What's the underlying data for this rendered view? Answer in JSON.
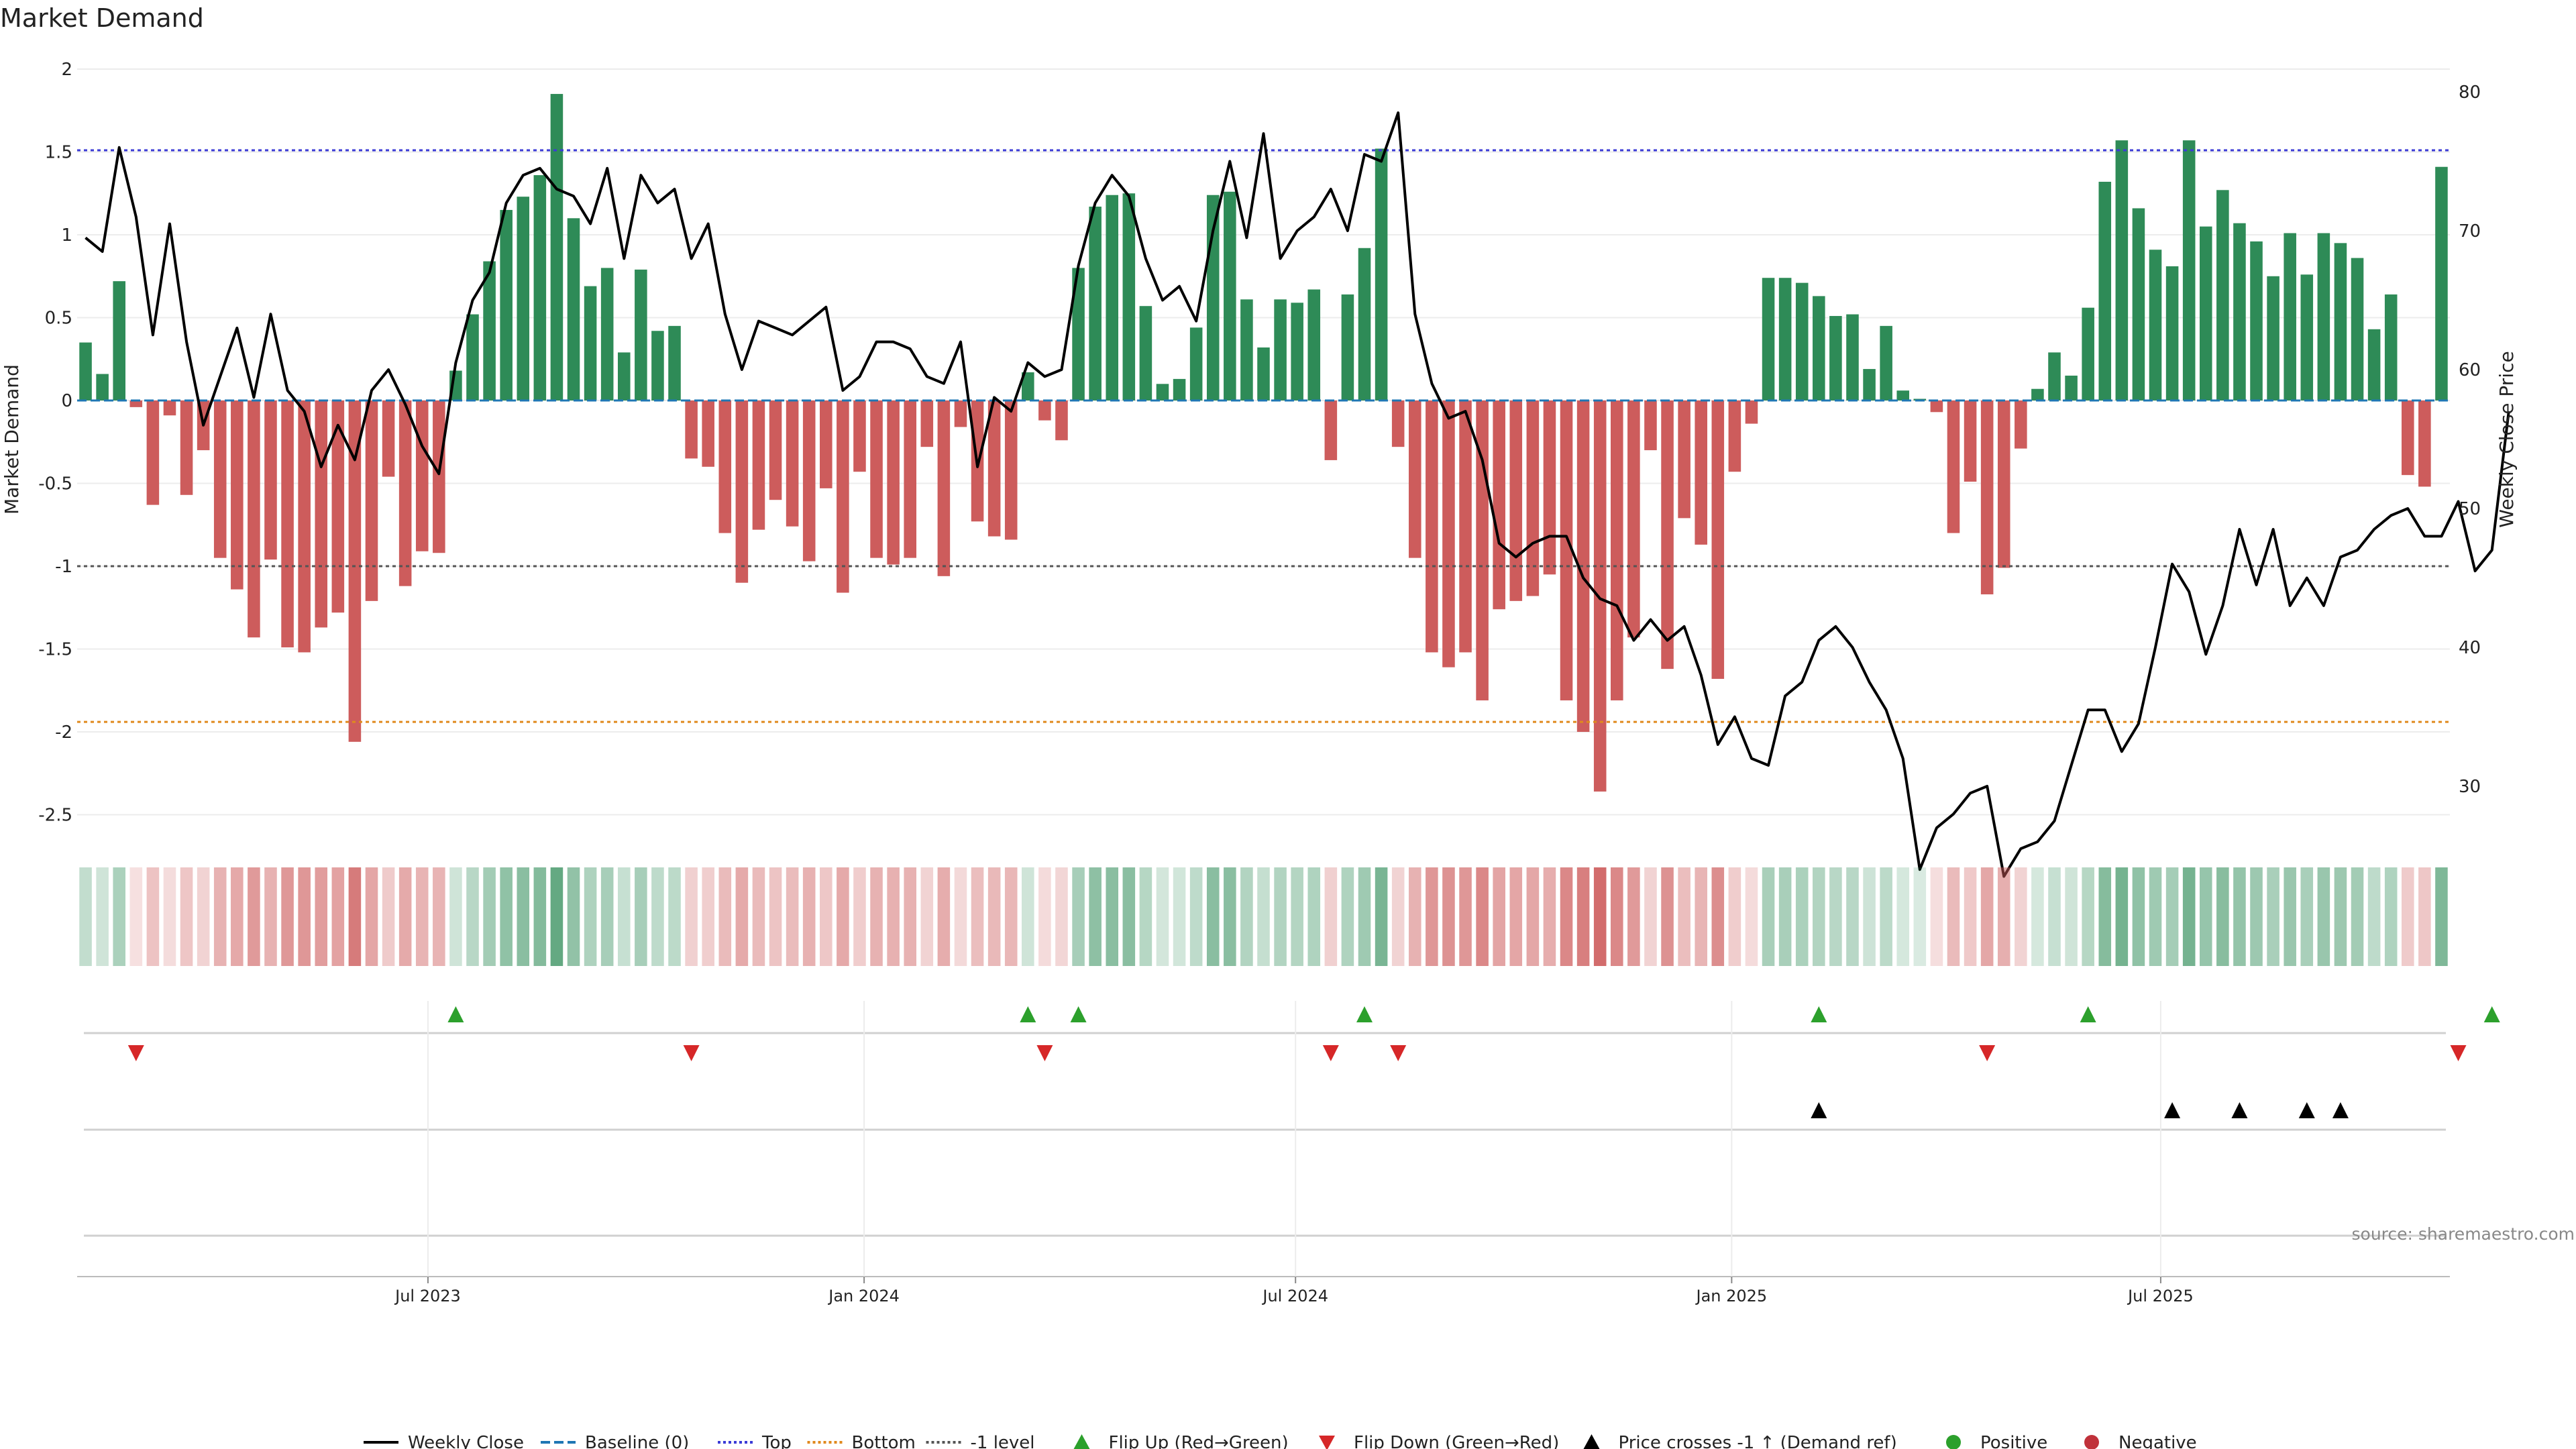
{
  "title": "Market Demand",
  "source": "source: sharemaestro.com",
  "colors": {
    "pos": "#2e8b57",
    "neg": "#cd5c5c",
    "price": "#000000",
    "baseline": "#1f77b4",
    "top": "#3b3bd6",
    "bottom": "#e08a1e",
    "level": "#555555",
    "flip_up": "#2ca02c",
    "flip_down": "#d62728",
    "cross": "#000000",
    "positive_dot": "#2ca02c",
    "negative_dot": "#c0313a"
  },
  "chart_data": {
    "type": "bar",
    "title": "Market Demand",
    "ylabel": "Market Demand",
    "y2label": "Weekly Close Price",
    "ylim": [
      -2.7,
      2.0
    ],
    "y2lim": [
      25.5,
      81.5
    ],
    "yticks": [
      "2",
      "1.5",
      "1",
      "0.5",
      "0",
      "-0.5",
      "-1",
      "-1.5",
      "-2",
      "-2.5"
    ],
    "ytick_values": [
      2,
      1.5,
      1,
      0.5,
      0,
      -0.5,
      -1,
      -1.5,
      -2,
      -2.5
    ],
    "y2ticks": [
      "80",
      "70",
      "60",
      "50",
      "40",
      "30"
    ],
    "y2tick_values": [
      80,
      70,
      60,
      50,
      40,
      30
    ],
    "x_start": "2023-02-03",
    "x_end": "2025-10-31",
    "x_ticks": [
      {
        "label": "Jul 2023",
        "date": "2023-07-01"
      },
      {
        "label": "Jan 2024",
        "date": "2024-01-01"
      },
      {
        "label": "Jul 2024",
        "date": "2024-07-01"
      },
      {
        "label": "Jan 2025",
        "date": "2025-01-01"
      },
      {
        "label": "Jul 2025",
        "date": "2025-07-01"
      }
    ],
    "reference_lines": {
      "top": 1.51,
      "bottom": -1.94,
      "level": -1.0,
      "baseline": 0
    },
    "demand": [
      0.35,
      0.16,
      0.72,
      -0.04,
      -0.63,
      -0.09,
      -0.57,
      -0.3,
      -0.95,
      -1.14,
      -1.43,
      -0.96,
      -1.49,
      -1.52,
      -1.37,
      -1.28,
      -2.06,
      -1.21,
      -0.46,
      -1.12,
      -0.91,
      -0.92,
      0.18,
      0.52,
      0.84,
      1.15,
      1.23,
      1.36,
      1.85,
      1.1,
      0.69,
      0.8,
      0.29,
      0.79,
      0.42,
      0.45,
      -0.35,
      -0.4,
      -0.8,
      -1.1,
      -0.78,
      -0.6,
      -0.76,
      -0.97,
      -0.53,
      -1.16,
      -0.43,
      -0.95,
      -0.99,
      -0.95,
      -0.28,
      -1.06,
      -0.16,
      -0.73,
      -0.82,
      -0.84,
      0.17,
      -0.12,
      -0.24,
      0.8,
      1.17,
      1.24,
      1.25,
      0.57,
      0.1,
      0.13,
      0.44,
      1.24,
      1.26,
      0.61,
      0.32,
      0.61,
      0.59,
      0.67,
      -0.36,
      0.64,
      0.92,
      1.52,
      -0.28,
      -0.95,
      -1.52,
      -1.61,
      -1.52,
      -1.81,
      -1.26,
      -1.21,
      -1.18,
      -1.05,
      -1.81,
      -2.0,
      -2.36,
      -1.81,
      -1.43,
      -0.3,
      -1.62,
      -0.71,
      -0.87,
      -1.68,
      -0.43,
      -0.14,
      0.74,
      0.74,
      0.71,
      0.63,
      0.51,
      0.52,
      0.19,
      0.45,
      0.06,
      0.01,
      -0.07,
      -0.8,
      -0.49,
      -1.17,
      -1.01,
      -0.29,
      0.07,
      0.29,
      0.15,
      0.56,
      1.32,
      1.57,
      1.16,
      0.91,
      0.81,
      1.57,
      1.05,
      1.27,
      1.07,
      0.96,
      0.75,
      1.01,
      0.76,
      1.01,
      0.95,
      0.86,
      0.43,
      0.64,
      -0.45,
      -0.52,
      1.41
    ],
    "weekly_close": [
      69.5,
      68.5,
      76.0,
      71.0,
      62.5,
      70.5,
      62.0,
      56.0,
      59.5,
      63.0,
      58.0,
      64.0,
      58.5,
      57.0,
      53.0,
      56.0,
      53.5,
      58.5,
      60.0,
      57.5,
      54.5,
      52.5,
      60.5,
      65.0,
      67.0,
      72.0,
      74.0,
      74.5,
      73.0,
      72.5,
      70.5,
      74.5,
      68.0,
      74.0,
      72.0,
      73.0,
      68.0,
      70.5,
      64.0,
      60.0,
      63.5,
      63.0,
      62.5,
      63.5,
      64.5,
      58.5,
      59.5,
      62.0,
      62.0,
      61.5,
      59.5,
      59.0,
      62.0,
      53.0,
      58.0,
      57.0,
      60.5,
      59.5,
      60.0,
      67.5,
      72.0,
      74.0,
      72.5,
      68.0,
      65.0,
      66.0,
      63.5,
      70.0,
      75.0,
      69.5,
      77.0,
      68.0,
      70.0,
      71.0,
      73.0,
      70.0,
      75.5,
      75.0,
      78.5,
      64.0,
      59.0,
      56.5,
      57.0,
      53.5,
      47.5,
      46.5,
      47.5,
      48.0,
      48.0,
      45.0,
      43.5,
      43.0,
      40.5,
      42.0,
      40.5,
      41.5,
      38.0,
      33.0,
      35.0,
      32.0,
      31.5,
      36.5,
      37.5,
      40.5,
      41.5,
      40.0,
      37.5,
      35.5,
      32.0,
      24.0,
      27.0,
      28.0,
      29.5,
      30.0,
      23.5,
      25.5,
      26.0,
      27.5,
      31.5,
      35.5,
      35.5,
      32.5,
      34.5,
      40.0,
      46.0,
      44.0,
      39.5,
      43.0,
      48.5,
      44.5,
      48.5,
      43.0,
      45.0,
      43.0,
      46.5,
      47.0,
      48.5,
      49.5,
      50.0,
      48.0,
      48.0,
      50.5,
      45.5,
      47.0,
      57.0
    ],
    "flip_up_idx": [
      22,
      56,
      59,
      76,
      103,
      119,
      143
    ],
    "flip_down_idx": [
      3,
      36,
      57,
      74,
      78,
      113,
      141
    ],
    "price_cross_idx": [
      103,
      124,
      128,
      132,
      134
    ]
  },
  "legend": [
    {
      "label": "Weekly Close",
      "kind": "line",
      "color": "#000000",
      "dash": ""
    },
    {
      "label": "Baseline (0)",
      "kind": "line",
      "color": "#1f77b4",
      "dash": "14 6"
    },
    {
      "label": "Top",
      "kind": "line",
      "color": "#3b3bd6",
      "dash": "4 4"
    },
    {
      "label": "Bottom",
      "kind": "line",
      "color": "#e08a1e",
      "dash": "4 4"
    },
    {
      "label": "-1 level",
      "kind": "line",
      "color": "#555555",
      "dash": "4 4"
    },
    {
      "label": "Flip Up (Red→Green)",
      "kind": "tri-up",
      "color": "#2ca02c"
    },
    {
      "label": "Flip Down (Green→Red)",
      "kind": "tri-down",
      "color": "#d62728"
    },
    {
      "label": "Price crosses -1 ↑ (Demand ref)",
      "kind": "tri-up",
      "color": "#000000"
    },
    {
      "label": "Positive",
      "kind": "dot",
      "color": "#2ca02c"
    },
    {
      "label": "Negative",
      "kind": "dot",
      "color": "#c0313a"
    }
  ]
}
